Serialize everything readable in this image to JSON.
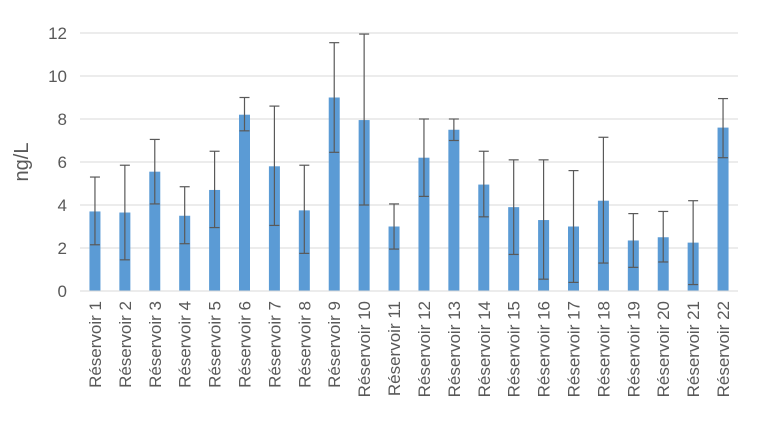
{
  "chart_data": {
    "type": "bar",
    "title": "",
    "xlabel": "",
    "ylabel": "ng/L",
    "ylim": [
      0,
      12
    ],
    "yticks": [
      0,
      2,
      4,
      6,
      8,
      10,
      12
    ],
    "grid": true,
    "legend": "none",
    "bar_color": "#5B9BD5",
    "errorbar_color": "#595959",
    "categories": [
      "Réservoir 1",
      "Réservoir 2",
      "Réservoir 3",
      "Réservoir 4",
      "Réservoir 5",
      "Réservoir 6",
      "Réservoir 7",
      "Réservoir 8",
      "Réservoir 9",
      "Réservoir 10",
      "Réservoir 11",
      "Réservoir 12",
      "Réservoir 13",
      "Réservoir 14",
      "Réservoir 15",
      "Réservoir 16",
      "Réservoir 17",
      "Réservoir 18",
      "Réservoir 19",
      "Réservoir 20",
      "Réservoir 21",
      "Réservoir 22"
    ],
    "values": [
      3.7,
      3.65,
      5.55,
      3.5,
      4.7,
      8.2,
      5.8,
      3.75,
      9.0,
      7.95,
      3.0,
      6.2,
      7.5,
      4.95,
      3.9,
      3.3,
      3.0,
      4.2,
      2.35,
      2.5,
      2.25,
      7.6
    ],
    "error_low": [
      2.15,
      1.45,
      4.05,
      2.2,
      2.95,
      7.45,
      3.05,
      1.75,
      6.45,
      4.0,
      1.95,
      4.4,
      7.0,
      3.45,
      1.7,
      0.55,
      0.4,
      1.3,
      1.1,
      1.35,
      0.3,
      6.2
    ],
    "error_high": [
      5.3,
      5.85,
      7.05,
      4.85,
      6.5,
      9.0,
      8.6,
      5.85,
      11.55,
      11.95,
      4.05,
      8.0,
      8.0,
      6.5,
      6.1,
      6.1,
      5.6,
      7.15,
      3.6,
      3.7,
      4.2,
      8.95
    ]
  }
}
